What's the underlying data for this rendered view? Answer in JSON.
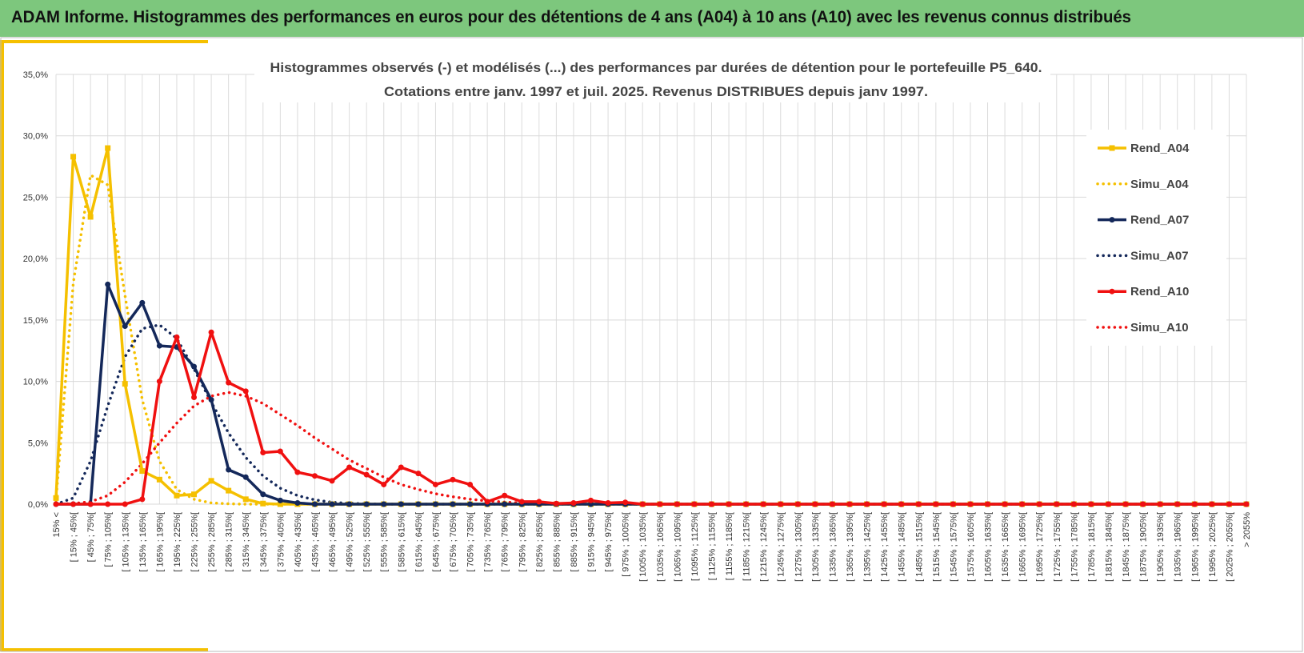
{
  "header": {
    "title": "ADAM Informe. Histogrammes des performances en euros pour des détentions de 4 ans (A04) à 10 ans (A10) avec les revenus connus distribués"
  },
  "chart_data": {
    "type": "line",
    "title": "Histogrammes observés (-) et modélisés (...) des performances par durées de détention pour le portefeuille P5_640.",
    "subtitle": "Cotations entre janv. 1997 et juil. 2025. Revenus DISTRIBUES depuis janv 1997.",
    "categories": [
      "15% <",
      "[ 15% ; 45%[",
      "[ 45% ; 75%[",
      "[ 75% ; 105%[",
      "[ 105% ; 135%[",
      "[ 135% ; 165%[",
      "[ 165% ; 195%[",
      "[ 195% ; 225%[",
      "[ 225% ; 255%[",
      "[ 255% ; 285%[",
      "[ 285% ; 315%[",
      "[ 315% ; 345%[",
      "[ 345% ; 375%[",
      "[ 375% ; 405%[",
      "[ 405% ; 435%[",
      "[ 435% ; 465%[",
      "[ 465% ; 495%[",
      "[ 495% ; 525%[",
      "[ 525% ; 555%[",
      "[ 555% ; 585%[",
      "[ 585% ; 615%[",
      "[ 615% ; 645%[",
      "[ 645% ; 675%[",
      "[ 675% ; 705%[",
      "[ 705% ; 735%[",
      "[ 735% ; 765%[",
      "[ 765% ; 795%[",
      "[ 795% ; 825%[",
      "[ 825% ; 855%[",
      "[ 855% ; 885%[",
      "[ 885% ; 915%[",
      "[ 915% ; 945%[",
      "[ 945% ; 975%[",
      "[ 975% ; 1005%[",
      "[ 1005% ; 1035%[",
      "[ 1035% ; 1065%[",
      "[ 1065% ; 1095%[",
      "[ 1095% ; 1125%[",
      "[ 1125% ; 1155%[",
      "[ 1155% ; 1185%[",
      "[ 1185% ; 1215%[",
      "[ 1215% ; 1245%[",
      "[ 1245% ; 1275%[",
      "[ 1275% ; 1305%[",
      "[ 1305% ; 1335%[",
      "[ 1335% ; 1365%[",
      "[ 1365% ; 1395%[",
      "[ 1395% ; 1425%[",
      "[ 1425% ; 1455%[",
      "[ 1455% ; 1485%[",
      "[ 1485% ; 1515%[",
      "[ 1515% ; 1545%[",
      "[ 1545% ; 1575%[",
      "[ 1575% ; 1605%[",
      "[ 1605% ; 1635%[",
      "[ 1635% ; 1665%[",
      "[ 1665% ; 1695%[",
      "[ 1695% ; 1725%[",
      "[ 1725% ; 1755%[",
      "[ 1755% ; 1785%[",
      "[ 1785% ; 1815%[",
      "[ 1815% ; 1845%[",
      "[ 1845% ; 1875%[",
      "[ 1875% ; 1905%[",
      "[ 1905% ; 1935%[",
      "[ 1935% ; 1965%[",
      "[ 1965% ; 1995%[",
      "[ 1995% ; 2025%[",
      "[ 2025% ; 2055%[",
      "> 2055%"
    ],
    "series": [
      {
        "name": "Rend_A04",
        "color": "#f5c000",
        "marker": "square",
        "dotted": false,
        "values": [
          0.5,
          28.3,
          23.4,
          29.0,
          9.8,
          2.7,
          2.0,
          0.7,
          0.8,
          1.9,
          1.1,
          0.4,
          0.05,
          0,
          0,
          0,
          0,
          0,
          0,
          0,
          0,
          0,
          0,
          0,
          0,
          0,
          0,
          0,
          0,
          0,
          0,
          0,
          0,
          0,
          0,
          0,
          0,
          0,
          0,
          0,
          0,
          0,
          0,
          0,
          0,
          0,
          0,
          0,
          0,
          0,
          0,
          0,
          0,
          0,
          0,
          0,
          0,
          0,
          0,
          0,
          0,
          0,
          0,
          0,
          0,
          0,
          0,
          0,
          0,
          0
        ]
      },
      {
        "name": "Simu_A04",
        "color": "#f5c000",
        "marker": "none",
        "dotted": true,
        "values": [
          0.3,
          18,
          26.8,
          26,
          17,
          8.5,
          3.5,
          1.2,
          0.4,
          0.1,
          0.03,
          0,
          0,
          0,
          0,
          0,
          0,
          0,
          0,
          0,
          0,
          0,
          0,
          0,
          0,
          0,
          0,
          0,
          0,
          0,
          0,
          0,
          0,
          0,
          0,
          0,
          0,
          0,
          0,
          0,
          0,
          0,
          0,
          0,
          0,
          0,
          0,
          0,
          0,
          0,
          0,
          0,
          0,
          0,
          0,
          0,
          0,
          0,
          0,
          0,
          0,
          0,
          0,
          0,
          0,
          0,
          0,
          0,
          0,
          0
        ]
      },
      {
        "name": "Rend_A07",
        "color": "#14285a",
        "marker": "circle",
        "dotted": false,
        "values": [
          0,
          0,
          0,
          17.9,
          14.5,
          16.4,
          12.9,
          12.8,
          11.2,
          8.5,
          2.8,
          2.2,
          0.8,
          0.3,
          0.1,
          0,
          0,
          0,
          0,
          0,
          0,
          0,
          0,
          0,
          0,
          0,
          0,
          0,
          0,
          0,
          0,
          0,
          0,
          0,
          0,
          0,
          0,
          0,
          0,
          0,
          0,
          0,
          0,
          0,
          0,
          0,
          0,
          0,
          0,
          0,
          0,
          0,
          0,
          0,
          0,
          0,
          0,
          0,
          0,
          0,
          0,
          0,
          0,
          0,
          0,
          0,
          0,
          0,
          0,
          0
        ]
      },
      {
        "name": "Simu_A07",
        "color": "#14285a",
        "marker": "none",
        "dotted": true,
        "values": [
          0,
          0.5,
          3.5,
          8,
          12,
          14.3,
          14.6,
          13.5,
          11,
          8.3,
          5.8,
          3.8,
          2.3,
          1.3,
          0.7,
          0.35,
          0.15,
          0.07,
          0.03,
          0,
          0,
          0,
          0,
          0,
          0,
          0,
          0,
          0,
          0,
          0,
          0,
          0,
          0,
          0,
          0,
          0,
          0,
          0,
          0,
          0,
          0,
          0,
          0,
          0,
          0,
          0,
          0,
          0,
          0,
          0,
          0,
          0,
          0,
          0,
          0,
          0,
          0,
          0,
          0,
          0,
          0,
          0,
          0,
          0,
          0,
          0,
          0,
          0,
          0,
          0
        ]
      },
      {
        "name": "Rend_A10",
        "color": "#f01010",
        "marker": "circle",
        "dotted": false,
        "values": [
          0,
          0,
          0,
          0,
          0,
          0.4,
          10,
          13.6,
          8.7,
          14.0,
          9.9,
          9.2,
          4.2,
          4.3,
          2.6,
          2.3,
          1.9,
          3.0,
          2.4,
          1.6,
          3.0,
          2.5,
          1.6,
          2.0,
          1.6,
          0.2,
          0.7,
          0.2,
          0.2,
          0.05,
          0.1,
          0.3,
          0.1,
          0.15,
          0,
          0,
          0,
          0,
          0,
          0,
          0,
          0,
          0,
          0,
          0,
          0,
          0,
          0,
          0,
          0,
          0,
          0,
          0,
          0,
          0,
          0,
          0,
          0,
          0,
          0,
          0,
          0,
          0,
          0,
          0,
          0,
          0,
          0,
          0,
          0
        ]
      },
      {
        "name": "Simu_A10",
        "color": "#f01010",
        "marker": "none",
        "dotted": true,
        "values": [
          0,
          0.05,
          0.2,
          0.7,
          1.8,
          3.3,
          5,
          6.6,
          8,
          8.8,
          9.1,
          8.8,
          8.2,
          7.3,
          6.4,
          5.4,
          4.5,
          3.6,
          2.9,
          2.2,
          1.6,
          1.2,
          0.85,
          0.6,
          0.4,
          0.27,
          0.17,
          0.1,
          0.06,
          0.04,
          0.02,
          0,
          0,
          0,
          0,
          0,
          0,
          0,
          0,
          0,
          0,
          0,
          0,
          0,
          0,
          0,
          0,
          0,
          0,
          0,
          0,
          0,
          0,
          0,
          0,
          0,
          0,
          0,
          0,
          0,
          0,
          0,
          0,
          0,
          0,
          0,
          0,
          0,
          0,
          0
        ]
      }
    ],
    "ylim": [
      0,
      35
    ],
    "yticks": [
      {
        "value": 0,
        "label": "0,0%"
      },
      {
        "value": 5,
        "label": "5,0%"
      },
      {
        "value": 10,
        "label": "10,0%"
      },
      {
        "value": 15,
        "label": "15,0%"
      },
      {
        "value": 20,
        "label": "20,0%"
      },
      {
        "value": 25,
        "label": "25,0%"
      },
      {
        "value": 30,
        "label": "30,0%"
      },
      {
        "value": 35,
        "label": "35,0%"
      }
    ],
    "grid": true,
    "legend": "right"
  }
}
